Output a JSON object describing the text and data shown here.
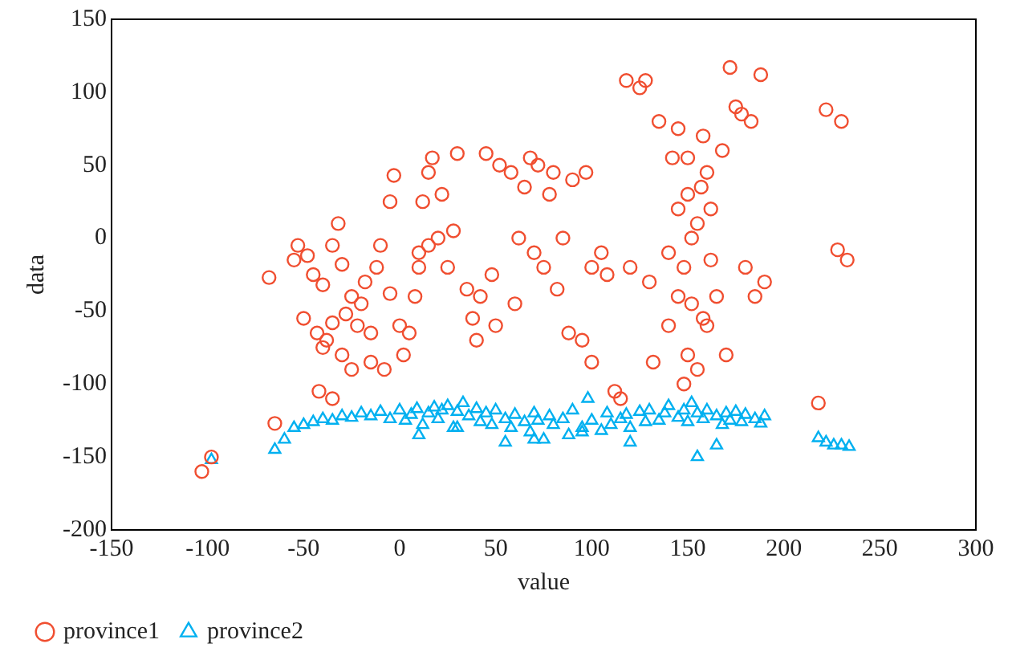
{
  "chart_data": {
    "type": "scatter",
    "xlabel": "value",
    "ylabel": "data",
    "xlim": [
      -150,
      300
    ],
    "xticks": [
      -150,
      -100,
      -50,
      0,
      50,
      100,
      150,
      200,
      250,
      300
    ],
    "ylim": [
      -200,
      150
    ],
    "yticks": [
      -200,
      -150,
      -100,
      -50,
      0,
      50,
      100,
      150
    ],
    "grid": false,
    "legend": "bottom left",
    "series": [
      {
        "name": "province1",
        "color": "#f04e30",
        "marker": "circle",
        "x": [
          -103,
          -98,
          -65,
          -68,
          -55,
          -53,
          -48,
          -45,
          -40,
          -35,
          -32,
          -30,
          -50,
          -43,
          -38,
          -35,
          -28,
          -25,
          -22,
          -20,
          -18,
          -15,
          -12,
          -10,
          -5,
          -8,
          -15,
          -25,
          -30,
          -40,
          -42,
          -35,
          -5,
          -3,
          0,
          2,
          5,
          8,
          10,
          12,
          15,
          17,
          10,
          15,
          20,
          22,
          25,
          28,
          30,
          35,
          38,
          40,
          42,
          45,
          48,
          50,
          52,
          58,
          60,
          62,
          65,
          68,
          70,
          72,
          75,
          78,
          80,
          82,
          85,
          88,
          90,
          95,
          97,
          100,
          100,
          105,
          108,
          112,
          115,
          118,
          120,
          125,
          128,
          130,
          132,
          135,
          140,
          142,
          145,
          148,
          150,
          152,
          155,
          158,
          160,
          162,
          165,
          168,
          170,
          172,
          175,
          178,
          180,
          183,
          185,
          188,
          190,
          218,
          222,
          228,
          230,
          233,
          140,
          145,
          150,
          155,
          160,
          148,
          152,
          157,
          162,
          145,
          150,
          158
        ],
        "values": [
          -160,
          -150,
          -127,
          -27,
          -15,
          -5,
          -12,
          -25,
          -32,
          -5,
          10,
          -18,
          -55,
          -65,
          -70,
          -58,
          -52,
          -40,
          -60,
          -45,
          -30,
          -65,
          -20,
          -5,
          -38,
          -90,
          -85,
          -90,
          -80,
          -75,
          -105,
          -110,
          25,
          43,
          -60,
          -80,
          -65,
          -40,
          -20,
          25,
          45,
          55,
          -10,
          -5,
          0,
          30,
          -20,
          5,
          58,
          -35,
          -55,
          -70,
          -40,
          58,
          -25,
          -60,
          50,
          45,
          -45,
          0,
          35,
          55,
          -10,
          50,
          -20,
          30,
          45,
          -35,
          0,
          -65,
          40,
          -70,
          45,
          -85,
          -20,
          -10,
          -25,
          -105,
          -110,
          108,
          -20,
          103,
          108,
          -30,
          -85,
          80,
          -10,
          55,
          75,
          -100,
          30,
          0,
          10,
          -55,
          45,
          20,
          -40,
          60,
          -80,
          117,
          90,
          85,
          -20,
          80,
          -40,
          112,
          -30,
          -113,
          88,
          -8,
          80,
          -15,
          -60,
          -40,
          -80,
          -90,
          -60,
          -20,
          -45,
          35,
          -15,
          20,
          55,
          70
        ]
      },
      {
        "name": "province2",
        "color": "#00b0f0",
        "marker": "triangle",
        "x": [
          -98,
          -65,
          -60,
          -55,
          -50,
          -45,
          -40,
          -35,
          -30,
          -25,
          -20,
          -15,
          -10,
          -5,
          0,
          3,
          6,
          9,
          12,
          15,
          18,
          20,
          22,
          25,
          28,
          30,
          33,
          36,
          40,
          42,
          45,
          48,
          50,
          55,
          58,
          60,
          65,
          68,
          70,
          72,
          75,
          78,
          80,
          85,
          88,
          90,
          95,
          98,
          100,
          105,
          108,
          110,
          115,
          118,
          120,
          125,
          128,
          130,
          135,
          138,
          140,
          145,
          148,
          150,
          152,
          155,
          158,
          160,
          165,
          168,
          170,
          172,
          175,
          178,
          180,
          185,
          188,
          190,
          10,
          30,
          55,
          70,
          95,
          120,
          155,
          165,
          218,
          222,
          226,
          230,
          234
        ],
        "values": [
          -152,
          -145,
          -138,
          -130,
          -128,
          -126,
          -124,
          -125,
          -122,
          -123,
          -120,
          -122,
          -119,
          -124,
          -118,
          -125,
          -121,
          -117,
          -128,
          -120,
          -116,
          -124,
          -118,
          -115,
          -130,
          -119,
          -113,
          -122,
          -117,
          -126,
          -120,
          -128,
          -118,
          -124,
          -130,
          -121,
          -126,
          -133,
          -120,
          -125,
          -138,
          -122,
          -128,
          -124,
          -135,
          -118,
          -130,
          -110,
          -125,
          -132,
          -120,
          -128,
          -124,
          -121,
          -130,
          -119,
          -126,
          -118,
          -125,
          -120,
          -115,
          -123,
          -118,
          -126,
          -113,
          -120,
          -124,
          -118,
          -122,
          -128,
          -120,
          -125,
          -119,
          -126,
          -121,
          -124,
          -127,
          -122,
          -135,
          -130,
          -140,
          -138,
          -133,
          -140,
          -150,
          -142,
          -137,
          -140,
          -142,
          -142,
          -143
        ]
      }
    ]
  }
}
